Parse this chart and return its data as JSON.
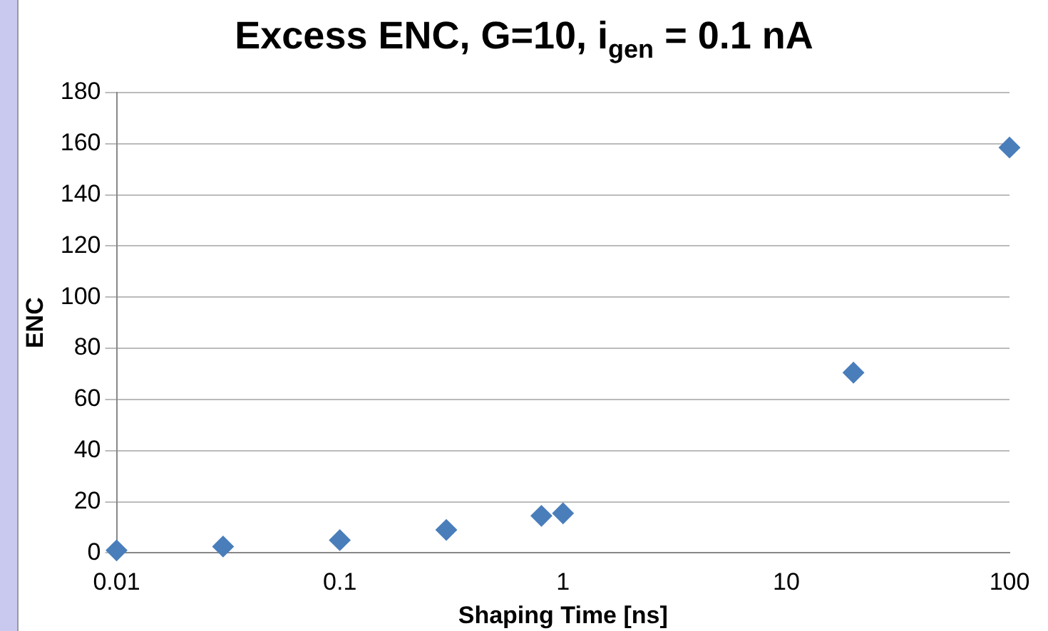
{
  "chart_data": {
    "type": "scatter",
    "title": "Excess  ENC, G=10, i$_{gen}$ = 0.1 nA",
    "xlabel": "Shaping Time [ns]",
    "ylabel": "ENC",
    "x": [
      0.01,
      0.03,
      0.1,
      0.3,
      0.8,
      1,
      20,
      100
    ],
    "values": [
      1,
      2.5,
      5,
      9,
      14.5,
      15.5,
      70.5,
      158.5
    ],
    "color": "#4a7ebb",
    "xlim": [
      0.01,
      100
    ],
    "xticks": [
      0.01,
      0.1,
      1,
      10,
      100
    ],
    "ylim": [
      0,
      180
    ],
    "yticks": [
      0,
      20,
      40,
      60,
      80,
      100,
      120,
      140,
      160,
      180
    ],
    "log": "x",
    "grid": "y",
    "marker": "diamond",
    "legend": false
  }
}
